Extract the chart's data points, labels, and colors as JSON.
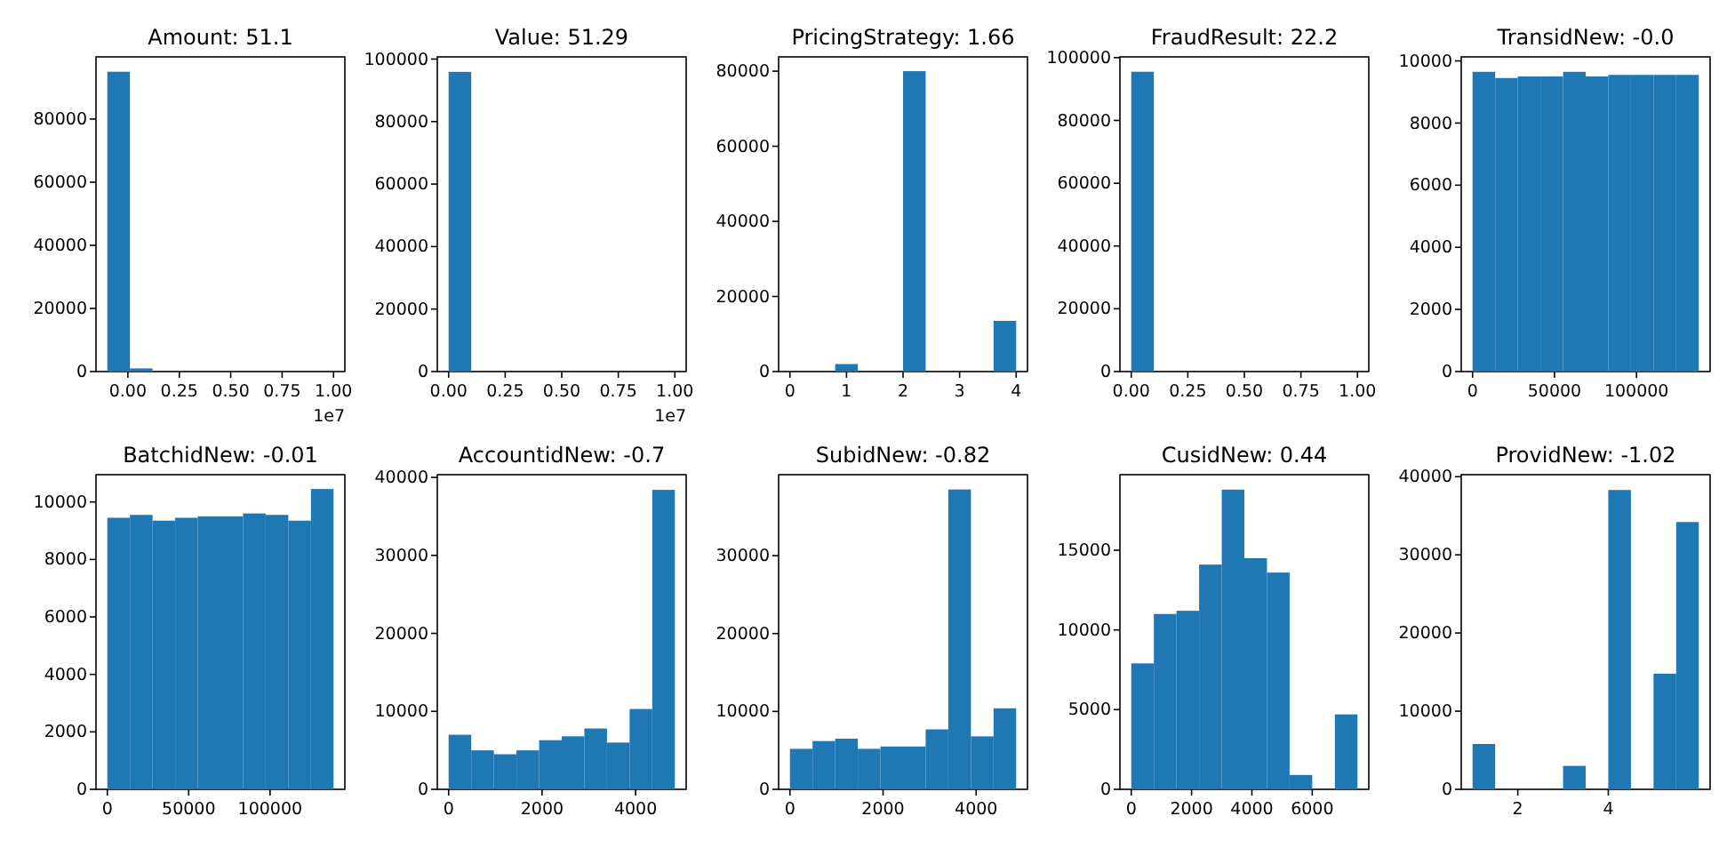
{
  "chart_data": [
    {
      "type": "histogram",
      "title": "Amount: 51.1",
      "bins": [
        -0.1,
        0.01,
        0.12,
        0.23,
        0.34,
        0.45,
        0.56,
        0.67,
        0.78,
        0.89,
        1.0
      ],
      "values": [
        95000,
        1000,
        0,
        0,
        0,
        0,
        0,
        0,
        0,
        0
      ],
      "color": "#1f77b4",
      "xlim": [
        -0.155,
        1.055
      ],
      "ylim": [
        0,
        99700
      ],
      "xticks": [
        {
          "value": 0,
          "label": "0.00"
        },
        {
          "value": 0.25,
          "label": "0.25"
        },
        {
          "value": 0.5,
          "label": "0.50"
        },
        {
          "value": 0.75,
          "label": "0.75"
        },
        {
          "value": 1,
          "label": "1.00"
        }
      ],
      "yticks": [
        0,
        20000,
        40000,
        60000,
        80000
      ],
      "annotations": [
        "1e7"
      ]
    },
    {
      "type": "histogram",
      "title": "Value: 51.29",
      "bins": [
        0,
        0.1,
        0.2,
        0.3,
        0.4,
        0.5,
        0.6,
        0.7,
        0.8,
        0.9,
        1.0
      ],
      "values": [
        95900,
        0,
        0,
        0,
        0,
        0,
        0,
        0,
        0,
        0
      ],
      "color": "#1f77b4",
      "xlim": [
        -0.05,
        1.05
      ],
      "ylim": [
        0,
        100700
      ],
      "xticks": [
        {
          "value": 0,
          "label": "0.00"
        },
        {
          "value": 0.25,
          "label": "0.25"
        },
        {
          "value": 0.5,
          "label": "0.50"
        },
        {
          "value": 0.75,
          "label": "0.75"
        },
        {
          "value": 1,
          "label": "1.00"
        }
      ],
      "yticks": [
        0,
        20000,
        40000,
        60000,
        80000,
        100000
      ],
      "annotations": [
        "1e7"
      ]
    },
    {
      "type": "histogram",
      "title": "PricingStrategy: 1.66",
      "bins": [
        0,
        0.4,
        0.8,
        1.2,
        1.6,
        2.0,
        2.4,
        2.8,
        3.2,
        3.6,
        4.0
      ],
      "values": [
        0,
        0,
        2000,
        0,
        0,
        80000,
        0,
        0,
        0,
        13500
      ],
      "color": "#1f77b4",
      "xlim": [
        -0.2,
        4.2
      ],
      "ylim": [
        0,
        83800
      ],
      "xticks": [
        0,
        1,
        2,
        3,
        4
      ],
      "yticks": [
        0,
        20000,
        40000,
        60000,
        80000
      ]
    },
    {
      "type": "histogram",
      "title": "FraudResult: 22.2",
      "bins": [
        0,
        0.1,
        0.2,
        0.3,
        0.4,
        0.5,
        0.6,
        0.7,
        0.8,
        0.9,
        1.0
      ],
      "values": [
        95500,
        0,
        0,
        0,
        0,
        0,
        0,
        0,
        0,
        0
      ],
      "color": "#1f77b4",
      "xlim": [
        -0.05,
        1.05
      ],
      "ylim": [
        0,
        100240
      ],
      "xticks": [
        {
          "value": 0,
          "label": "0.00"
        },
        {
          "value": 0.25,
          "label": "0.25"
        },
        {
          "value": 0.5,
          "label": "0.50"
        },
        {
          "value": 0.75,
          "label": "0.75"
        },
        {
          "value": 1,
          "label": "1.00"
        }
      ],
      "yticks": [
        0,
        20000,
        40000,
        60000,
        80000,
        100000
      ]
    },
    {
      "type": "histogram",
      "title": "TransidNew: -0.0",
      "bins": [
        0,
        13800,
        27600,
        41400,
        55200,
        69000,
        82800,
        96600,
        110400,
        124200,
        138000
      ],
      "values": [
        9650,
        9450,
        9500,
        9500,
        9650,
        9500,
        9550,
        9550,
        9550,
        9550
      ],
      "color": "#1f77b4",
      "xlim": [
        -6900,
        144900
      ],
      "ylim": [
        0,
        10130
      ],
      "xticks": [
        0,
        50000,
        100000
      ],
      "yticks": [
        0,
        2000,
        4000,
        6000,
        8000,
        10000
      ]
    },
    {
      "type": "histogram",
      "title": "BatchidNew: -0.01",
      "bins": [
        0,
        13900,
        27800,
        41700,
        55600,
        69500,
        83400,
        97300,
        111200,
        125100,
        139000
      ],
      "values": [
        9450,
        9550,
        9350,
        9450,
        9500,
        9500,
        9600,
        9550,
        9350,
        10450
      ],
      "color": "#1f77b4",
      "xlim": [
        -6950,
        145950
      ],
      "ylim": [
        0,
        10950
      ],
      "xticks": [
        0,
        50000,
        100000
      ],
      "yticks": [
        0,
        2000,
        4000,
        6000,
        8000,
        10000
      ]
    },
    {
      "type": "histogram",
      "title": "AccountidNew: -0.7",
      "bins": [
        0,
        484,
        968,
        1452,
        1936,
        2420,
        2904,
        3388,
        3872,
        4356,
        4840
      ],
      "values": [
        7000,
        5000,
        4500,
        5000,
        6300,
        6800,
        7800,
        6000,
        10300,
        38400
      ],
      "color": "#1f77b4",
      "xlim": [
        -242,
        5082
      ],
      "ylim": [
        0,
        40350
      ],
      "xticks": [
        0,
        2000,
        4000
      ],
      "yticks": [
        0,
        10000,
        20000,
        30000,
        40000
      ]
    },
    {
      "type": "histogram",
      "title": "SubidNew: -0.82",
      "bins": [
        0,
        486,
        972,
        1458,
        1944,
        2430,
        2916,
        3402,
        3888,
        4374,
        4860
      ],
      "values": [
        5200,
        6200,
        6500,
        5200,
        5500,
        5500,
        7700,
        38500,
        6800,
        10400
      ],
      "color": "#1f77b4",
      "xlim": [
        -243,
        5103
      ],
      "ylim": [
        0,
        40400
      ],
      "xticks": [
        0,
        2000,
        4000
      ],
      "yticks": [
        0,
        10000,
        20000,
        30000
      ]
    },
    {
      "type": "histogram",
      "title": "CusidNew: 0.44",
      "bins": [
        0,
        750,
        1500,
        2250,
        3000,
        3750,
        4500,
        5250,
        6000,
        6750,
        7500
      ],
      "values": [
        7900,
        11000,
        11200,
        14100,
        18800,
        14500,
        13600,
        900,
        0,
        4700
      ],
      "color": "#1f77b4",
      "xlim": [
        -375,
        7875
      ],
      "ylim": [
        0,
        19740
      ],
      "xticks": [
        0,
        2000,
        4000,
        6000
      ],
      "yticks": [
        0,
        5000,
        10000,
        15000
      ]
    },
    {
      "type": "histogram",
      "title": "ProvidNew: -1.02",
      "bins": [
        1,
        1.5,
        2,
        2.5,
        3,
        3.5,
        4,
        4.5,
        5,
        5.5,
        6
      ],
      "values": [
        5800,
        0,
        0,
        0,
        3000,
        0,
        38300,
        0,
        14800,
        34200
      ],
      "color": "#1f77b4",
      "xlim": [
        0.75,
        6.25
      ],
      "ylim": [
        0,
        40260
      ],
      "xticks": [
        2,
        4
      ],
      "yticks": [
        0,
        10000,
        20000,
        30000,
        40000
      ]
    }
  ]
}
